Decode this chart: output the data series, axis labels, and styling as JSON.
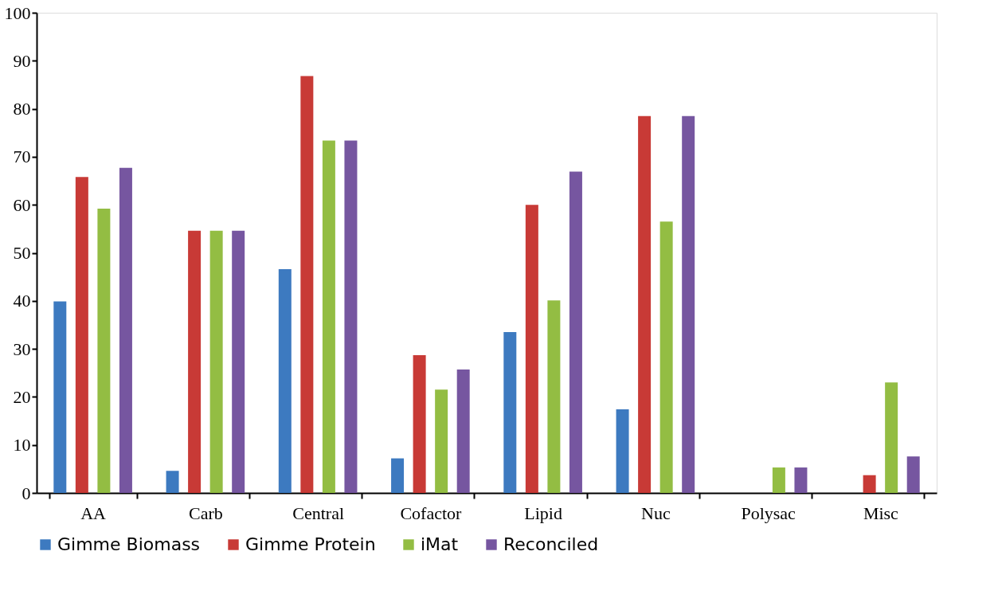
{
  "chart_data": {
    "type": "bar",
    "categories": [
      "AA",
      "Carb",
      "Central",
      "Cofactor",
      "Lipid",
      "Nuc",
      "Polysac",
      "Misc"
    ],
    "series": [
      {
        "name": "Gimme Biomass",
        "color": "#3d7ac0",
        "values": [
          39.9,
          4.6,
          46.6,
          7.2,
          33.5,
          17.4,
          0,
          0
        ]
      },
      {
        "name": "Gimme Protein",
        "color": "#c83a36",
        "values": [
          65.8,
          54.6,
          86.8,
          28.7,
          60.0,
          78.5,
          0,
          3.7
        ]
      },
      {
        "name": "iMat",
        "color": "#93bd43",
        "values": [
          59.2,
          54.6,
          73.4,
          21.5,
          40.1,
          56.5,
          5.3,
          23.0
        ]
      },
      {
        "name": "Reconciled",
        "color": "#7656a0",
        "values": [
          67.7,
          54.6,
          73.4,
          25.7,
          66.9,
          78.5,
          5.3,
          7.6
        ]
      }
    ],
    "ylim": [
      0,
      100
    ],
    "yticks": [
      0,
      10,
      20,
      30,
      40,
      50,
      60,
      70,
      80,
      90,
      100
    ],
    "grid": false,
    "legend": "bottom"
  }
}
